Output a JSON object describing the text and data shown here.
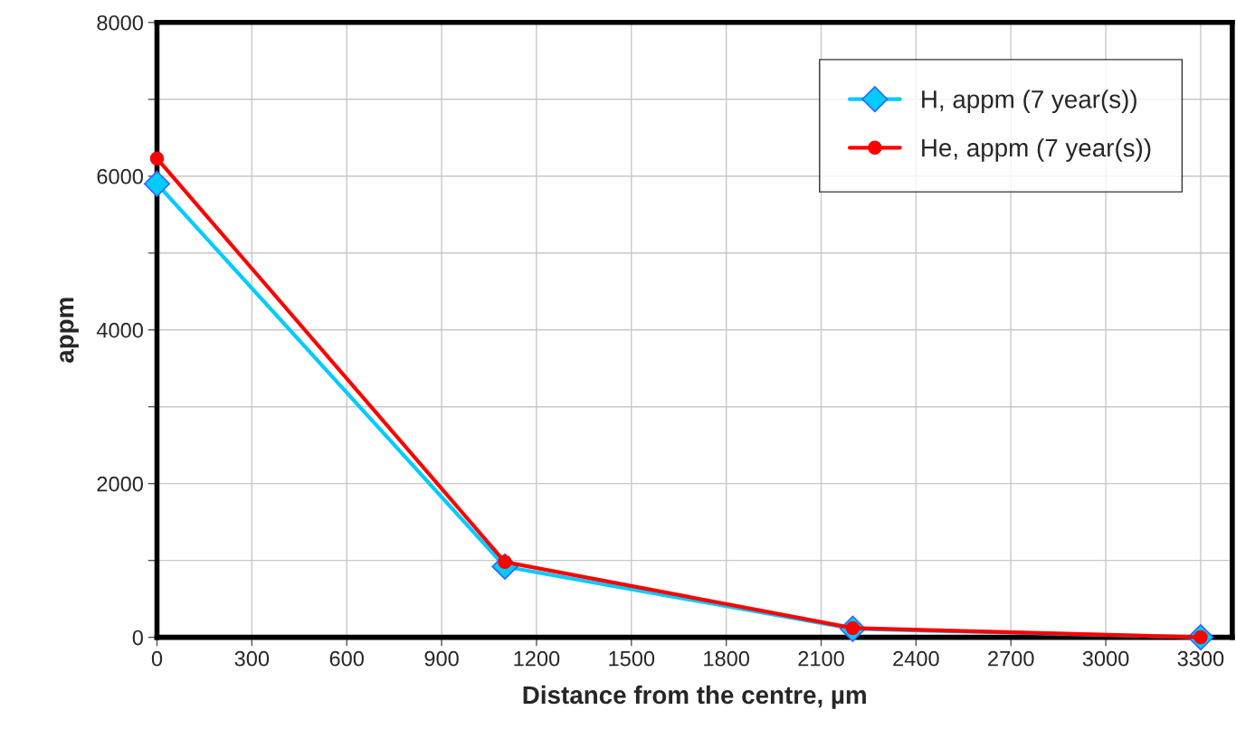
{
  "chart_data": {
    "type": "line",
    "xlabel": "Distance from the centre, µm",
    "ylabel": "appm",
    "x": [
      0,
      1100,
      2200,
      3300
    ],
    "series": [
      {
        "name": "H, appm (7 year(s))",
        "color": "#00ccff",
        "marker": "diamond",
        "values": [
          5900,
          920,
          110,
          0
        ]
      },
      {
        "name": "He, appm (7 year(s))",
        "color": "#ff0000",
        "marker": "circle",
        "values": [
          6230,
          980,
          120,
          0
        ]
      }
    ],
    "xlim": [
      0,
      3400
    ],
    "xticks": [
      0,
      300,
      600,
      900,
      1200,
      1500,
      1800,
      2100,
      2400,
      2700,
      3000,
      3300
    ],
    "ylim": [
      0,
      8000
    ],
    "yticks": [
      0,
      {
        "value": 1000,
        "label": null
      },
      2000,
      {
        "value": 3000,
        "label": null
      },
      4000,
      {
        "value": 5000,
        "label": null
      },
      6000,
      {
        "value": 7000,
        "label": null
      },
      8000
    ],
    "grid": true,
    "legend": "top right"
  }
}
